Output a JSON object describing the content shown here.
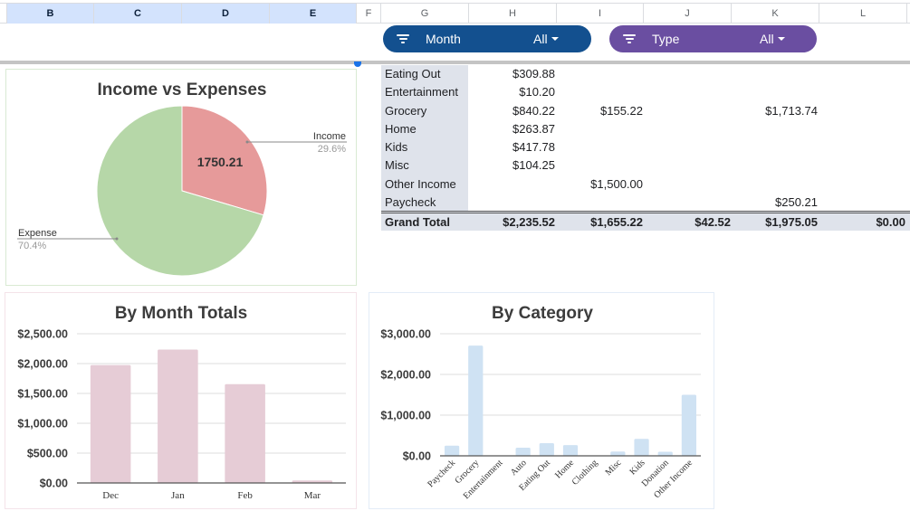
{
  "columns": [
    "B",
    "C",
    "D",
    "E",
    "F",
    "G",
    "H",
    "I",
    "J",
    "K",
    "L"
  ],
  "filters": [
    {
      "label": "Month",
      "value": "All",
      "color": "#13508f",
      "icon": "filter-icon"
    },
    {
      "label": "Type",
      "value": "All",
      "color": "#6a4ea1",
      "icon": "filter-icon"
    }
  ],
  "pivot": {
    "rows": [
      {
        "label": "Eating Out",
        "values": [
          "$309.88",
          "",
          "",
          "",
          ""
        ]
      },
      {
        "label": "Entertainment",
        "values": [
          "$10.20",
          "",
          "",
          "",
          ""
        ]
      },
      {
        "label": "Grocery",
        "values": [
          "$840.22",
          "$155.22",
          "",
          "$1,713.74",
          ""
        ]
      },
      {
        "label": "Home",
        "values": [
          "$263.87",
          "",
          "",
          "",
          ""
        ]
      },
      {
        "label": "Kids",
        "values": [
          "$417.78",
          "",
          "",
          "",
          ""
        ]
      },
      {
        "label": "Misc",
        "values": [
          "$104.25",
          "",
          "",
          "",
          ""
        ]
      },
      {
        "label": "Other Income",
        "values": [
          "",
          "$1,500.00",
          "",
          "",
          ""
        ]
      },
      {
        "label": "Paycheck",
        "values": [
          "",
          "",
          "",
          "$250.21",
          ""
        ]
      }
    ],
    "grand_total": {
      "label": "Grand Total",
      "values": [
        "$2,235.52",
        "$1,655.22",
        "$42.52",
        "$1,975.05",
        "$0.00"
      ]
    }
  },
  "chart_data": [
    {
      "type": "pie",
      "title": "Income vs Expenses",
      "slices": [
        {
          "label": "Income",
          "percent": "29.6%",
          "value": 29.6,
          "color": "#e69a9a"
        },
        {
          "label": "Expense",
          "percent": "70.4%",
          "value": 70.4,
          "color": "#b6d7a8"
        }
      ],
      "slice_label": "1750.21",
      "legend": "labeled-slices"
    },
    {
      "type": "bar",
      "title": "By Month Totals",
      "categories": [
        "Dec",
        "Jan",
        "Feb",
        "Mar"
      ],
      "values": [
        1975.05,
        2235.52,
        1655.22,
        42.52
      ],
      "yticks": [
        "$0.00",
        "$500.00",
        "$1,000.00",
        "$1,500.00",
        "$2,000.00",
        "$2,500.00"
      ],
      "ylim": [
        0,
        2500
      ],
      "grid": true,
      "color": "#e6ccd6"
    },
    {
      "type": "bar",
      "title": "By Category",
      "categories": [
        "Paycheck",
        "Grocery",
        "Entertainment",
        "Auto",
        "Eating Out",
        "Home",
        "Clothing",
        "Misc",
        "Kids",
        "Donation",
        "Other Income"
      ],
      "values": [
        250.21,
        2709.18,
        10.2,
        200,
        309.88,
        263.87,
        0,
        104.25,
        417.78,
        100,
        1500
      ],
      "yticks": [
        "$0.00",
        "$1,000.00",
        "$2,000.00",
        "$3,000.00"
      ],
      "ylim": [
        0,
        3000
      ],
      "grid": true,
      "color": "#cfe2f3"
    }
  ]
}
